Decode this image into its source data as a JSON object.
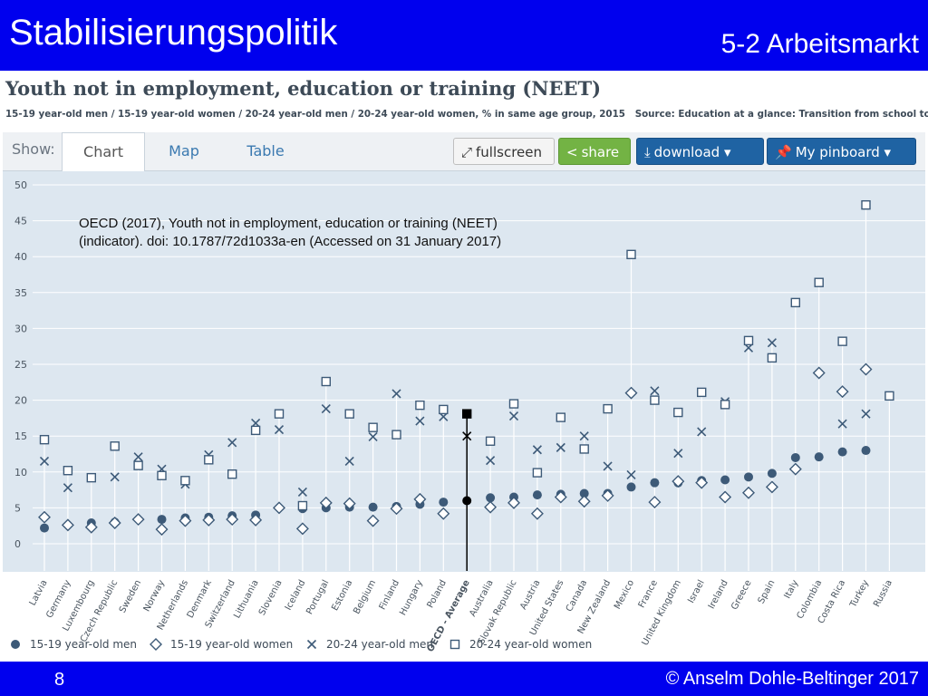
{
  "slide": {
    "title": "Stabilisierungspolitik",
    "subtitle": "5-2 Arbeitsmarkt",
    "page_number": "8",
    "copyright": "© Anselm Dohle-Beltinger 2017"
  },
  "figure": {
    "title": "Youth not in employment, education or training (NEET)",
    "subtitle": "15-19 year-old men / 15-19 year-old women / 20-24 year-old men / 20-24 year-old women, % in same age group, 2015",
    "source": "Source: Education at a glance: Transition from school to work",
    "citation_line1": "OECD (2017), Youth not in employment, education or training (NEET)",
    "citation_line2": "(indicator). doi: 10.1787/72d1033a-en (Accessed on 31 January 2017)"
  },
  "toolbar": {
    "show_label": "Show:",
    "tabs": [
      "Chart",
      "Map",
      "Table"
    ],
    "active_tab": "Chart",
    "fullscreen_label": "fullscreen",
    "share_label": "share",
    "download_label": "download ▾",
    "pinboard_label": "My pinboard ▾"
  },
  "colors": {
    "header_blue": "#0000ee",
    "series": "#3d5a78",
    "plot_background": "#dde7f0",
    "highlight": "#000000",
    "share_green": "#73b344",
    "button_blue": "#1f63a3"
  },
  "chart_data": {
    "type": "scatter",
    "ylim": [
      0,
      50
    ],
    "yticks": [
      0,
      5,
      10,
      15,
      20,
      25,
      30,
      35,
      40,
      45,
      50
    ],
    "grid": true,
    "legend_position": "bottom",
    "highlight_category": "OECD - Average",
    "categories": [
      "Latvia",
      "Germany",
      "Luxembourg",
      "Czech Republic",
      "Sweden",
      "Norway",
      "Netherlands",
      "Denmark",
      "Switzerland",
      "Lithuania",
      "Slovenia",
      "Iceland",
      "Portugal",
      "Estonia",
      "Belgium",
      "Finland",
      "Hungary",
      "Poland",
      "OECD - Average",
      "Australia",
      "Slovak Republic",
      "Austria",
      "United States",
      "Canada",
      "New Zealand",
      "Mexico",
      "France",
      "United Kingdom",
      "Israel",
      "Ireland",
      "Greece",
      "Spain",
      "Italy",
      "Colombia",
      "Costa Rica",
      "Turkey",
      "Russia"
    ],
    "series": [
      {
        "name": "15-19 year-old men",
        "marker": "circle",
        "values": [
          2.2,
          null,
          2.9,
          3.0,
          null,
          3.4,
          3.6,
          3.7,
          3.9,
          4.0,
          null,
          4.9,
          5.0,
          5.1,
          5.1,
          5.2,
          5.5,
          5.8,
          6.0,
          6.4,
          6.5,
          6.8,
          6.9,
          7.0,
          7.0,
          7.9,
          8.5,
          8.5,
          8.8,
          8.9,
          9.3,
          9.8,
          12.0,
          12.1,
          12.8,
          13.0,
          null
        ]
      },
      {
        "name": "15-19 year-old women",
        "marker": "diamond",
        "values": [
          3.7,
          2.6,
          2.3,
          2.9,
          3.4,
          2.0,
          3.2,
          3.3,
          3.4,
          3.3,
          5.0,
          2.1,
          5.7,
          5.6,
          3.2,
          4.9,
          6.2,
          4.2,
          null,
          5.1,
          5.7,
          4.2,
          6.5,
          5.9,
          6.7,
          21.0,
          5.8,
          8.7,
          8.5,
          6.5,
          7.1,
          7.9,
          10.4,
          23.8,
          21.2,
          24.3,
          null
        ]
      },
      {
        "name": "20-24 year-old men",
        "marker": "x",
        "values": [
          11.5,
          7.8,
          null,
          9.3,
          12.1,
          10.4,
          8.3,
          12.4,
          14.1,
          16.8,
          15.9,
          7.2,
          18.8,
          11.5,
          14.9,
          20.9,
          17.1,
          17.7,
          15.0,
          11.6,
          17.8,
          13.1,
          13.4,
          15.0,
          10.8,
          9.6,
          21.3,
          12.6,
          15.6,
          19.8,
          27.3,
          28.0,
          33.6,
          null,
          16.7,
          18.1,
          null
        ]
      },
      {
        "name": "20-24 year-old women",
        "marker": "square",
        "values": [
          14.5,
          10.2,
          9.2,
          13.6,
          10.9,
          9.5,
          8.8,
          11.7,
          9.7,
          15.8,
          18.1,
          5.3,
          22.6,
          18.1,
          16.2,
          15.2,
          19.3,
          18.7,
          18.1,
          14.3,
          19.5,
          9.9,
          17.6,
          13.2,
          18.8,
          40.3,
          20.0,
          18.3,
          21.1,
          19.4,
          28.3,
          25.9,
          33.6,
          36.4,
          28.2,
          47.2,
          20.6
        ]
      }
    ]
  }
}
